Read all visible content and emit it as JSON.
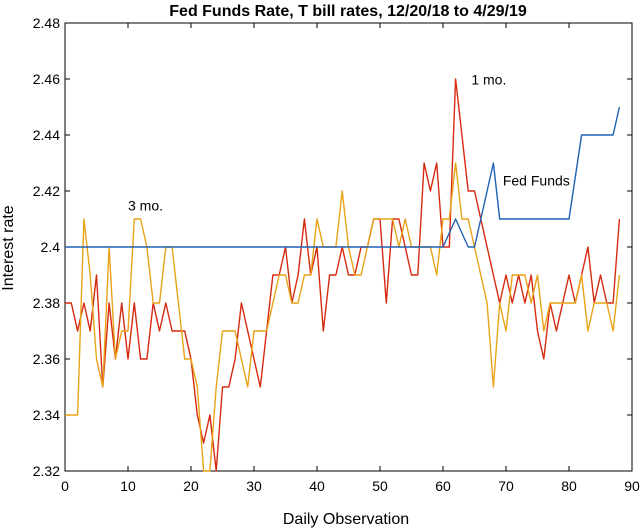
{
  "chart_data": {
    "type": "line",
    "title": "Fed Funds Rate, T bill rates, 12/20/18 to 4/29/19",
    "xlabel": "Daily Observation",
    "ylabel": "Interest rate",
    "xlim": [
      0,
      90
    ],
    "ylim": [
      2.32,
      2.48
    ],
    "xticks": [
      0,
      10,
      20,
      30,
      40,
      50,
      60,
      70,
      80,
      90
    ],
    "yticks": [
      2.32,
      2.34,
      2.36,
      2.38,
      2.4,
      2.42,
      2.44,
      2.46,
      2.48
    ],
    "xtick_labels": [
      "0",
      "10",
      "20",
      "30",
      "40",
      "50",
      "60",
      "70",
      "80",
      "90"
    ],
    "ytick_labels": [
      "2.32",
      "2.34",
      "2.36",
      "2.38",
      "2.4",
      "2.42",
      "2.44",
      "2.46",
      "2.48"
    ],
    "grid": false,
    "legend": "none",
    "series": [
      {
        "name": "1 mo.",
        "color": "#d62a10",
        "x": [
          0,
          1,
          2,
          3,
          4,
          5,
          6,
          7,
          8,
          9,
          10,
          11,
          12,
          13,
          14,
          15,
          16,
          17,
          18,
          19,
          20,
          21,
          22,
          23,
          24,
          25,
          26,
          27,
          28,
          29,
          30,
          31,
          32,
          33,
          34,
          35,
          36,
          37,
          38,
          39,
          40,
          41,
          42,
          43,
          44,
          45,
          46,
          47,
          48,
          49,
          50,
          51,
          52,
          53,
          54,
          55,
          56,
          57,
          58,
          59,
          60,
          61,
          62,
          63,
          64,
          65,
          66,
          67,
          68,
          69,
          70,
          71,
          72,
          73,
          74,
          75,
          76,
          77,
          78,
          79,
          80,
          81,
          82,
          83,
          84,
          85,
          86,
          87,
          88
        ],
        "y": [
          2.38,
          2.38,
          2.37,
          2.38,
          2.37,
          2.39,
          2.35,
          2.38,
          2.36,
          2.38,
          2.36,
          2.38,
          2.36,
          2.36,
          2.38,
          2.37,
          2.38,
          2.37,
          2.37,
          2.37,
          2.36,
          2.34,
          2.33,
          2.34,
          2.32,
          2.35,
          2.35,
          2.36,
          2.38,
          2.37,
          2.36,
          2.35,
          2.37,
          2.39,
          2.39,
          2.4,
          2.38,
          2.39,
          2.41,
          2.39,
          2.4,
          2.37,
          2.39,
          2.39,
          2.4,
          2.39,
          2.39,
          2.4,
          2.4,
          2.41,
          2.41,
          2.38,
          2.41,
          2.41,
          2.4,
          2.39,
          2.39,
          2.43,
          2.42,
          2.43,
          2.4,
          2.4,
          2.46,
          2.44,
          2.42,
          2.42,
          2.41,
          2.4,
          2.39,
          2.38,
          2.39,
          2.38,
          2.39,
          2.38,
          2.39,
          2.37,
          2.36,
          2.38,
          2.37,
          2.38,
          2.39,
          2.38,
          2.39,
          2.4,
          2.38,
          2.39,
          2.38,
          2.38,
          2.41
        ]
      },
      {
        "name": "3 mo.",
        "color": "#e8a317",
        "x": [
          0,
          1,
          2,
          3,
          4,
          5,
          6,
          7,
          8,
          9,
          10,
          11,
          12,
          13,
          14,
          15,
          16,
          17,
          18,
          19,
          20,
          21,
          22,
          23,
          24,
          25,
          26,
          27,
          28,
          29,
          30,
          31,
          32,
          33,
          34,
          35,
          36,
          37,
          38,
          39,
          40,
          41,
          42,
          43,
          44,
          45,
          46,
          47,
          48,
          49,
          50,
          51,
          52,
          53,
          54,
          55,
          56,
          57,
          58,
          59,
          60,
          61,
          62,
          63,
          64,
          65,
          66,
          67,
          68,
          69,
          70,
          71,
          72,
          73,
          74,
          75,
          76,
          77,
          78,
          79,
          80,
          81,
          82,
          83,
          84,
          85,
          86,
          87,
          88
        ],
        "y": [
          2.34,
          2.34,
          2.34,
          2.41,
          2.39,
          2.36,
          2.35,
          2.4,
          2.36,
          2.37,
          2.37,
          2.41,
          2.41,
          2.4,
          2.38,
          2.38,
          2.4,
          2.4,
          2.38,
          2.36,
          2.36,
          2.35,
          2.32,
          2.32,
          2.35,
          2.37,
          2.37,
          2.37,
          2.36,
          2.35,
          2.37,
          2.37,
          2.37,
          2.38,
          2.39,
          2.39,
          2.38,
          2.38,
          2.39,
          2.39,
          2.41,
          2.4,
          2.4,
          2.4,
          2.42,
          2.4,
          2.39,
          2.39,
          2.4,
          2.41,
          2.41,
          2.41,
          2.41,
          2.4,
          2.41,
          2.4,
          2.4,
          2.4,
          2.4,
          2.39,
          2.41,
          2.41,
          2.43,
          2.41,
          2.41,
          2.4,
          2.39,
          2.38,
          2.35,
          2.38,
          2.37,
          2.39,
          2.39,
          2.39,
          2.38,
          2.39,
          2.37,
          2.38,
          2.38,
          2.38,
          2.38,
          2.38,
          2.39,
          2.37,
          2.38,
          2.38,
          2.38,
          2.37,
          2.39
        ]
      },
      {
        "name": "Fed Funds",
        "color": "#1f62b4",
        "x": [
          0,
          60,
          62,
          64,
          65,
          66,
          68,
          69,
          80,
          82,
          84,
          85,
          87,
          88
        ],
        "y": [
          2.4,
          2.4,
          2.41,
          2.4,
          2.4,
          2.41,
          2.43,
          2.41,
          2.41,
          2.44,
          2.44,
          2.44,
          2.44,
          2.45
        ]
      }
    ],
    "annotations": [
      {
        "text": "3 mo.",
        "x": 10,
        "y": 2.413
      },
      {
        "text": "1 mo.",
        "x": 64.5,
        "y": 2.458
      },
      {
        "text": "Fed Funds",
        "x": 69.5,
        "y": 2.422
      }
    ]
  }
}
